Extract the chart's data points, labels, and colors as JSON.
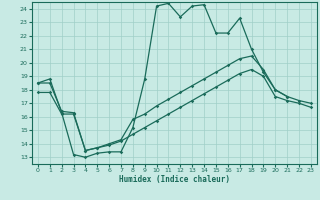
{
  "bg_color": "#c8eae4",
  "grid_color": "#a0cfc8",
  "line_color": "#1a6b5a",
  "xlabel": "Humidex (Indice chaleur)",
  "xlim": [
    -0.5,
    23.5
  ],
  "ylim": [
    12.5,
    24.5
  ],
  "yticks": [
    13,
    14,
    15,
    16,
    17,
    18,
    19,
    20,
    21,
    22,
    23,
    24
  ],
  "xticks": [
    0,
    1,
    2,
    3,
    4,
    5,
    6,
    7,
    8,
    9,
    10,
    11,
    12,
    13,
    14,
    15,
    16,
    17,
    18,
    19,
    20,
    21,
    22,
    23
  ],
  "line1_x": [
    0,
    1,
    2,
    3,
    4,
    5,
    6,
    7,
    8,
    9,
    10,
    11,
    12,
    13,
    14,
    15,
    16,
    17,
    18,
    19,
    20,
    21
  ],
  "line1_y": [
    18.5,
    18.8,
    16.3,
    13.2,
    13.0,
    13.3,
    13.4,
    13.4,
    15.2,
    18.8,
    24.2,
    24.4,
    23.4,
    24.2,
    24.3,
    22.2,
    22.2,
    23.3,
    21.0,
    19.3,
    18.0,
    17.5
  ],
  "line2_x": [
    0,
    1,
    2,
    3,
    4,
    5,
    6,
    7,
    8,
    9,
    10,
    11,
    12,
    13,
    14,
    15,
    16,
    17,
    18,
    19,
    20,
    21,
    22,
    23
  ],
  "line2_y": [
    18.5,
    18.5,
    16.4,
    16.3,
    13.5,
    13.7,
    14.0,
    14.3,
    15.8,
    16.2,
    16.8,
    17.3,
    17.8,
    18.3,
    18.8,
    19.3,
    19.8,
    20.3,
    20.5,
    19.5,
    18.0,
    17.5,
    17.2,
    17.0
  ],
  "line3_x": [
    0,
    1,
    2,
    3,
    4,
    5,
    6,
    7,
    8,
    9,
    10,
    11,
    12,
    13,
    14,
    15,
    16,
    17,
    18,
    19,
    20,
    21,
    22,
    23
  ],
  "line3_y": [
    17.8,
    17.8,
    16.2,
    16.2,
    13.5,
    13.7,
    13.9,
    14.2,
    14.7,
    15.2,
    15.7,
    16.2,
    16.7,
    17.2,
    17.7,
    18.2,
    18.7,
    19.2,
    19.5,
    19.0,
    17.5,
    17.2,
    17.0,
    16.7
  ]
}
